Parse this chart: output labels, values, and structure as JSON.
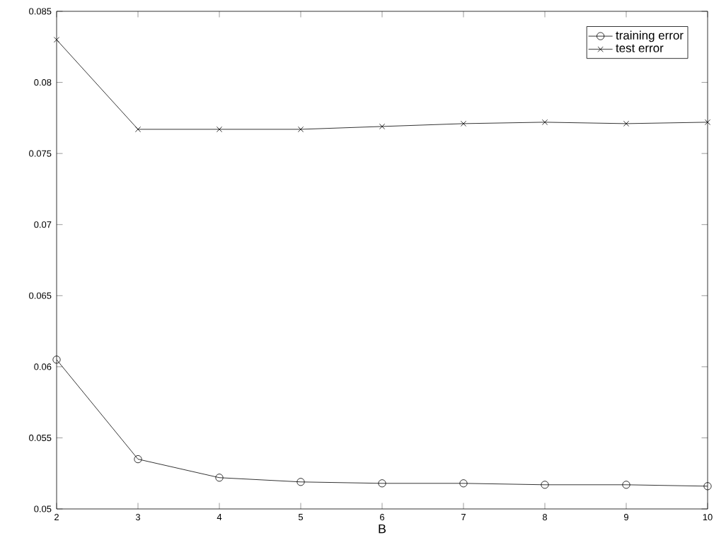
{
  "chart_data": {
    "type": "line",
    "xlabel": "B",
    "x": [
      2,
      3,
      4,
      5,
      6,
      7,
      8,
      9,
      10
    ],
    "xlim": [
      2,
      10
    ],
    "xticks": [
      2,
      3,
      4,
      5,
      6,
      7,
      8,
      9,
      10
    ],
    "ylim": [
      0.05,
      0.085
    ],
    "yticks": [
      0.05,
      0.055,
      0.06,
      0.065,
      0.07,
      0.075,
      0.08,
      0.085
    ],
    "legend": "top right",
    "grid": false,
    "line_style": "solid",
    "series": [
      {
        "name": "training error",
        "color": "#000000",
        "marker": "circle",
        "values": [
          0.0605,
          0.0535,
          0.0522,
          0.0519,
          0.0518,
          0.0518,
          0.0517,
          0.0517,
          0.0516
        ]
      },
      {
        "name": "test error",
        "color": "#000000",
        "marker": "cross",
        "values": [
          0.083,
          0.0767,
          0.0767,
          0.0767,
          0.0769,
          0.0771,
          0.0772,
          0.0771,
          0.0772
        ]
      }
    ]
  }
}
